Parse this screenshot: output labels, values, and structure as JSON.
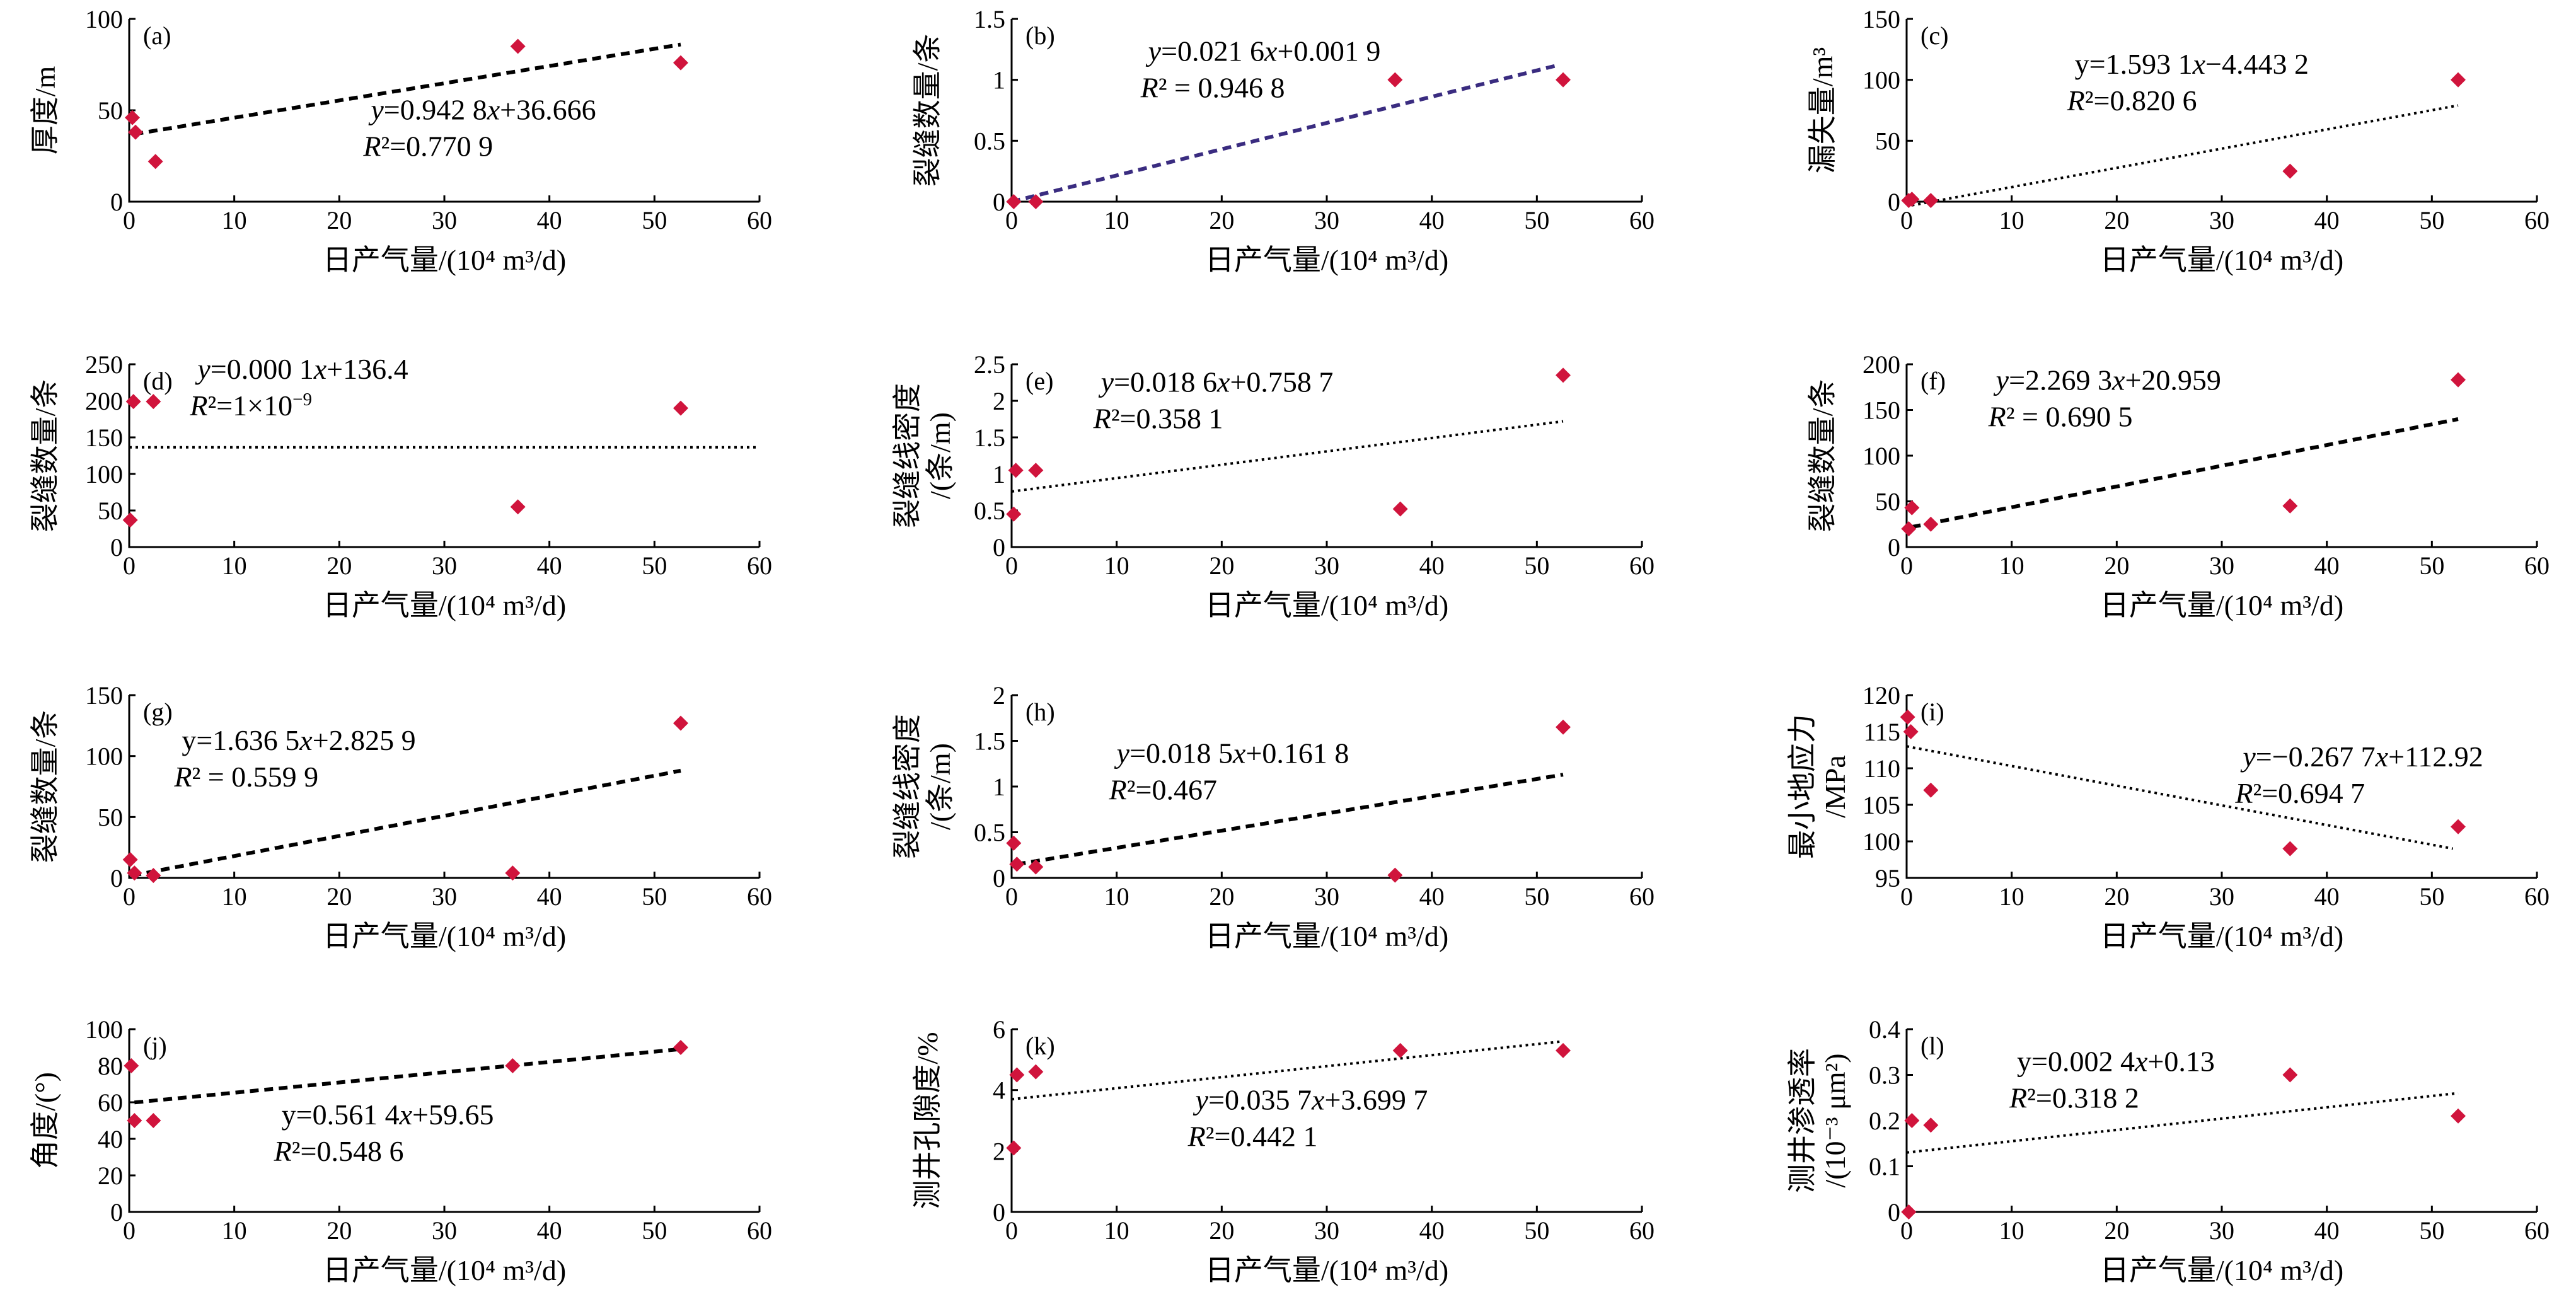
{
  "colors": {
    "marker": "#d0143c",
    "fit_default": "#000000",
    "fit_b": "#3a2c80",
    "axis": "#000000",
    "text": "#000000"
  },
  "chart_data": [
    {
      "id": "a",
      "type": "scatter",
      "panel_label": "(a)",
      "xlabel": "日产气量/(10⁴ m³/d)",
      "ylabel": [
        "厚度/m"
      ],
      "xlim": [
        0,
        60
      ],
      "ylim": [
        0,
        100
      ],
      "xticks": [
        "0",
        "10",
        "20",
        "30",
        "40",
        "50",
        "60"
      ],
      "yticks": [
        "0",
        "50",
        "100"
      ],
      "points": [
        [
          0.3,
          46
        ],
        [
          0.6,
          38
        ],
        [
          2.5,
          22
        ],
        [
          37,
          85
        ],
        [
          52.5,
          76
        ]
      ],
      "fit": {
        "line": [
          [
            0.5,
            37
          ],
          [
            52.5,
            86
          ]
        ],
        "style": "dashed"
      },
      "equation": [
        [
          {
            "t": "y",
            "i": true
          },
          {
            "t": "=0.942 8"
          },
          {
            "t": "x",
            "i": true
          },
          {
            "t": "+36.666"
          }
        ],
        [
          {
            "t": "R",
            "i": true
          },
          {
            "t": "²=0.770 9"
          }
        ]
      ],
      "eq_anchor": [
        23,
        0.55
      ]
    },
    {
      "id": "b",
      "type": "scatter",
      "panel_label": "(b)",
      "xlabel": "日产气量/(10⁴ m³/d)",
      "ylabel": [
        "裂缝数量/条"
      ],
      "xlim": [
        0,
        60
      ],
      "ylim": [
        0,
        1.5
      ],
      "xticks": [
        "0",
        "10",
        "20",
        "30",
        "40",
        "50",
        "60"
      ],
      "yticks": [
        "0",
        "0.5",
        "1",
        "1.5"
      ],
      "points": [
        [
          0.2,
          0
        ],
        [
          2.3,
          0
        ],
        [
          36.5,
          1.0
        ],
        [
          52.5,
          1.0
        ]
      ],
      "fit": {
        "line": [
          [
            0,
            0.0
          ],
          [
            52,
            1.12
          ]
        ],
        "style": "dashed",
        "color_key": "fit_b"
      },
      "equation": [
        [
          {
            "t": "y",
            "i": true
          },
          {
            "t": "=0.021 6"
          },
          {
            "t": "x",
            "i": true
          },
          {
            "t": "+0.001 9"
          }
        ],
        [
          {
            "t": "R",
            "i": true
          },
          {
            "t": "² = 0.946 8"
          }
        ]
      ],
      "eq_anchor": [
        13,
        0.23
      ]
    },
    {
      "id": "c",
      "type": "scatter",
      "panel_label": "(c)",
      "xlabel": "日产气量/(10⁴ m³/d)",
      "ylabel": [
        "漏失量/m³"
      ],
      "xlim": [
        0,
        60
      ],
      "ylim": [
        0,
        150
      ],
      "xticks": [
        "0",
        "10",
        "20",
        "30",
        "40",
        "50",
        "60"
      ],
      "yticks": [
        "0",
        "50",
        "100",
        "150"
      ],
      "points": [
        [
          0.2,
          1
        ],
        [
          0.5,
          2
        ],
        [
          2.3,
          1
        ],
        [
          36.5,
          25
        ],
        [
          52.5,
          100
        ]
      ],
      "fit": {
        "line": [
          [
            0.5,
            -3
          ],
          [
            52.5,
            79
          ]
        ],
        "style": "dotted"
      },
      "equation": [
        [
          {
            "t": "y=1.593 1"
          },
          {
            "t": "x",
            "i": true
          },
          {
            "t": "−4.443 2"
          }
        ],
        [
          {
            "t": "R",
            "i": true
          },
          {
            "t": "²=0.820 6"
          }
        ]
      ],
      "eq_anchor": [
        16,
        0.3
      ]
    },
    {
      "id": "d",
      "type": "scatter",
      "panel_label": "(d)",
      "xlabel": "日产气量/(10⁴ m³/d)",
      "ylabel": [
        "裂缝数量/条"
      ],
      "xlim": [
        0,
        60
      ],
      "ylim": [
        0,
        250
      ],
      "xticks": [
        "0",
        "10",
        "20",
        "30",
        "40",
        "50",
        "60"
      ],
      "yticks": [
        "0",
        "50",
        "100",
        "150",
        "200",
        "250"
      ],
      "points": [
        [
          0.1,
          37
        ],
        [
          0.4,
          199
        ],
        [
          2.3,
          199
        ],
        [
          37,
          55
        ],
        [
          52.5,
          190
        ]
      ],
      "fit": {
        "line": [
          [
            0,
            136.4
          ],
          [
            60,
            136.4
          ]
        ],
        "style": "dotted"
      },
      "equation": [
        [
          {
            "t": "y",
            "i": true
          },
          {
            "t": "=0.000 1"
          },
          {
            "t": "x",
            "i": true
          },
          {
            "t": "+136.4"
          }
        ],
        [
          {
            "t": "R",
            "i": true
          },
          {
            "t": "²=1×10"
          },
          {
            "t": "−9",
            "sup": true
          }
        ]
      ],
      "eq_anchor": [
        6.5,
        0.08
      ]
    },
    {
      "id": "e",
      "type": "scatter",
      "panel_label": "(e)",
      "xlabel": "日产气量/(10⁴ m³/d)",
      "ylabel": [
        "裂缝线密度",
        "/(条/m)"
      ],
      "xlim": [
        0,
        60
      ],
      "ylim": [
        0,
        2.5
      ],
      "xticks": [
        "0",
        "10",
        "20",
        "30",
        "40",
        "50",
        "60"
      ],
      "yticks": [
        "0",
        "0.5",
        "1",
        "1.5",
        "2",
        "2.5"
      ],
      "points": [
        [
          0.2,
          0.45
        ],
        [
          0.4,
          1.05
        ],
        [
          2.3,
          1.05
        ],
        [
          37,
          0.52
        ],
        [
          52.5,
          2.35
        ]
      ],
      "fit": {
        "line": [
          [
            0,
            0.76
          ],
          [
            52.5,
            1.72
          ]
        ],
        "style": "dotted"
      },
      "equation": [
        [
          {
            "t": "y",
            "i": true
          },
          {
            "t": "=0.018 6"
          },
          {
            "t": "x",
            "i": true
          },
          {
            "t": "+0.758 7"
          }
        ],
        [
          {
            "t": "R",
            "i": true
          },
          {
            "t": "²=0.358 1"
          }
        ]
      ],
      "eq_anchor": [
        8.5,
        0.15
      ]
    },
    {
      "id": "f",
      "type": "scatter",
      "panel_label": "(f)",
      "xlabel": "日产气量/(10⁴ m³/d)",
      "ylabel": [
        "裂缝数量/条"
      ],
      "xlim": [
        0,
        60
      ],
      "ylim": [
        0,
        200
      ],
      "xticks": [
        "0",
        "10",
        "20",
        "30",
        "40",
        "50",
        "60"
      ],
      "yticks": [
        "0",
        "50",
        "100",
        "150",
        "200"
      ],
      "points": [
        [
          0.2,
          20
        ],
        [
          0.5,
          43
        ],
        [
          2.3,
          25
        ],
        [
          36.5,
          45
        ],
        [
          52.5,
          183
        ]
      ],
      "fit": {
        "line": [
          [
            0.5,
            22
          ],
          [
            52.5,
            140
          ]
        ],
        "style": "dashed"
      },
      "equation": [
        [
          {
            "t": "y",
            "i": true
          },
          {
            "t": "=2.269 3"
          },
          {
            "t": "x",
            "i": true
          },
          {
            "t": "+20.959"
          }
        ],
        [
          {
            "t": "R",
            "i": true
          },
          {
            "t": "² = 0.690 5"
          }
        ]
      ],
      "eq_anchor": [
        8.5,
        0.14
      ]
    },
    {
      "id": "g",
      "type": "scatter",
      "panel_label": "(g)",
      "xlabel": "日产气量/(10⁴ m³/d)",
      "ylabel": [
        "裂缝数量/条"
      ],
      "xlim": [
        0,
        60
      ],
      "ylim": [
        0,
        150
      ],
      "xticks": [
        "0",
        "10",
        "20",
        "30",
        "40",
        "50",
        "60"
      ],
      "yticks": [
        "0",
        "50",
        "100",
        "150"
      ],
      "points": [
        [
          0.1,
          15
        ],
        [
          0.5,
          4
        ],
        [
          2.3,
          2
        ],
        [
          36.5,
          4
        ],
        [
          52.5,
          127
        ]
      ],
      "fit": {
        "line": [
          [
            0.3,
            2
          ],
          [
            52.5,
            88
          ]
        ],
        "style": "dashed"
      },
      "equation": [
        [
          {
            "t": "y=1.636 5"
          },
          {
            "t": "x",
            "i": true
          },
          {
            "t": "+2.825 9"
          }
        ],
        [
          {
            "t": "R",
            "i": true
          },
          {
            "t": "² = 0.559 9"
          }
        ]
      ],
      "eq_anchor": [
        5,
        0.3
      ]
    },
    {
      "id": "h",
      "type": "scatter",
      "panel_label": "(h)",
      "xlabel": "日产气量/(10⁴ m³/d)",
      "ylabel": [
        "裂缝线密度",
        "/(条/m)"
      ],
      "xlim": [
        0,
        60
      ],
      "ylim": [
        0,
        2
      ],
      "xticks": [
        "0",
        "10",
        "20",
        "30",
        "40",
        "50",
        "60"
      ],
      "yticks": [
        "0",
        "0.5",
        "1",
        "1.5",
        "2"
      ],
      "points": [
        [
          0.2,
          0.38
        ],
        [
          0.5,
          0.15
        ],
        [
          2.3,
          0.12
        ],
        [
          36.5,
          0.03
        ],
        [
          52.5,
          1.65
        ]
      ],
      "fit": {
        "line": [
          [
            0.5,
            0.15
          ],
          [
            52.5,
            1.13
          ]
        ],
        "style": "dashed"
      },
      "equation": [
        [
          {
            "t": "y",
            "i": true
          },
          {
            "t": "=0.018 5"
          },
          {
            "t": "x",
            "i": true
          },
          {
            "t": "+0.161 8"
          }
        ],
        [
          {
            "t": "R",
            "i": true
          },
          {
            "t": "²=0.467"
          }
        ]
      ],
      "eq_anchor": [
        10,
        0.37
      ]
    },
    {
      "id": "i",
      "type": "scatter",
      "panel_label": "(i)",
      "xlabel": "日产气量/(10⁴ m³/d)",
      "ylabel": [
        "最小地应力",
        "/MPa"
      ],
      "xlim": [
        0,
        60
      ],
      "ylim": [
        95,
        120
      ],
      "xticks": [
        "0",
        "10",
        "20",
        "30",
        "40",
        "50",
        "60"
      ],
      "yticks": [
        "95",
        "100",
        "105",
        "110",
        "115",
        "120"
      ],
      "points": [
        [
          0.1,
          117
        ],
        [
          0.4,
          115
        ],
        [
          2.3,
          107
        ],
        [
          36.5,
          99
        ],
        [
          52.5,
          102
        ]
      ],
      "fit": {
        "line": [
          [
            0,
            113
          ],
          [
            52,
            99
          ]
        ],
        "style": "dotted"
      },
      "equation": [
        [
          {
            "t": "y",
            "i": true
          },
          {
            "t": "=−0.267 7"
          },
          {
            "t": "x",
            "i": true
          },
          {
            "t": "+112.92"
          }
        ],
        [
          {
            "t": "R",
            "i": true
          },
          {
            "t": "²=0.694 7"
          }
        ]
      ],
      "eq_anchor": [
        32,
        0.39
      ]
    },
    {
      "id": "j",
      "type": "scatter",
      "panel_label": "(j)",
      "xlabel": "日产气量/(10⁴ m³/d)",
      "ylabel": [
        "角度/(°)"
      ],
      "xlim": [
        0,
        60
      ],
      "ylim": [
        0,
        100
      ],
      "xticks": [
        "0",
        "10",
        "20",
        "30",
        "40",
        "50",
        "60"
      ],
      "yticks": [
        "0",
        "20",
        "40",
        "60",
        "80",
        "100"
      ],
      "points": [
        [
          0.2,
          80
        ],
        [
          0.5,
          50
        ],
        [
          2.3,
          50
        ],
        [
          36.5,
          80
        ],
        [
          52.5,
          90
        ]
      ],
      "fit": {
        "line": [
          [
            0.5,
            59.9
          ],
          [
            52.5,
            89.1
          ]
        ],
        "style": "dashed"
      },
      "equation": [
        [
          {
            "t": "y=0.561 4"
          },
          {
            "t": "x",
            "i": true
          },
          {
            "t": "+59.65"
          }
        ],
        [
          {
            "t": "R",
            "i": true
          },
          {
            "t": "²=0.548 6"
          }
        ]
      ],
      "eq_anchor": [
        14.5,
        0.52
      ]
    },
    {
      "id": "k",
      "type": "scatter",
      "panel_label": "(k)",
      "xlabel": "日产气量/(10⁴ m³/d)",
      "ylabel": [
        "测井孔隙度/%"
      ],
      "xlim": [
        0,
        60
      ],
      "ylim": [
        0,
        6
      ],
      "xticks": [
        "0",
        "10",
        "20",
        "30",
        "40",
        "50",
        "60"
      ],
      "yticks": [
        "0",
        "2",
        "4",
        "6"
      ],
      "points": [
        [
          0.2,
          2.1
        ],
        [
          0.5,
          4.5
        ],
        [
          2.3,
          4.6
        ],
        [
          37,
          5.3
        ],
        [
          52.5,
          5.3
        ]
      ],
      "fit": {
        "line": [
          [
            0,
            3.7
          ],
          [
            52.5,
            5.6
          ]
        ],
        "style": "dotted"
      },
      "equation": [
        [
          {
            "t": "y",
            "i": true
          },
          {
            "t": "=0.035 7"
          },
          {
            "t": "x",
            "i": true
          },
          {
            "t": "+3.699 7"
          }
        ],
        [
          {
            "t": "R",
            "i": true
          },
          {
            "t": "²=0.442 1"
          }
        ]
      ],
      "eq_anchor": [
        17.5,
        0.44
      ]
    },
    {
      "id": "l",
      "type": "scatter",
      "panel_label": "(l)",
      "xlabel": "日产气量/(10⁴ m³/d)",
      "ylabel": [
        "测井渗透率",
        "/(10⁻³ μm²)"
      ],
      "xlim": [
        0,
        60
      ],
      "ylim": [
        0,
        0.4
      ],
      "xticks": [
        "0",
        "10",
        "20",
        "30",
        "40",
        "50",
        "60"
      ],
      "yticks": [
        "0",
        "0.1",
        "0.2",
        "0.3",
        "0.4"
      ],
      "points": [
        [
          0.2,
          0
        ],
        [
          0.5,
          0.2
        ],
        [
          2.3,
          0.19
        ],
        [
          36.5,
          0.3
        ],
        [
          52.5,
          0.21
        ]
      ],
      "fit": {
        "line": [
          [
            0,
            0.13
          ],
          [
            52.5,
            0.26
          ]
        ],
        "style": "dotted"
      },
      "equation": [
        [
          {
            "t": "y=0.002 4"
          },
          {
            "t": "x",
            "i": true
          },
          {
            "t": "+0.13"
          }
        ],
        [
          {
            "t": "R",
            "i": true
          },
          {
            "t": "²=0.318 2"
          }
        ]
      ],
      "eq_anchor": [
        10.5,
        0.23
      ]
    }
  ]
}
